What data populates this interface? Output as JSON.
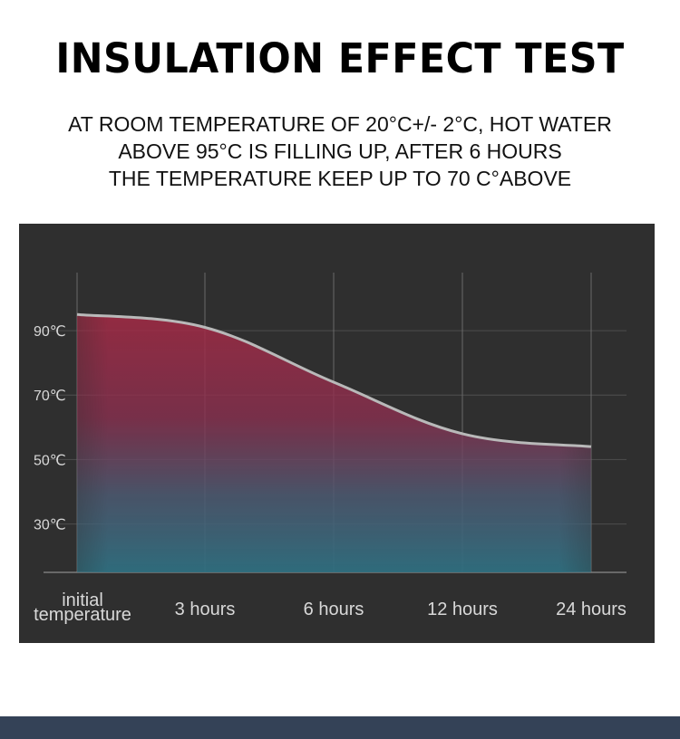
{
  "title": "INSULATION EFFECT TEST",
  "subtitle_lines": [
    "AT ROOM TEMPERATURE OF 20°C+/- 2°C, HOT WATER",
    "ABOVE 95°C IS FILLING UP, AFTER 6 HOURS",
    "THE TEMPERATURE KEEP UP TO 70 C°ABOVE"
  ],
  "chart_data": {
    "type": "area",
    "title": "",
    "xlabel": "",
    "ylabel": "",
    "categories": [
      "initial temperature",
      "3 hours",
      "6 hours",
      "12 hours",
      "24 hours"
    ],
    "y_tick_labels": [
      "90℃",
      "70℃",
      "50℃",
      "30℃"
    ],
    "y_ticks": [
      90,
      70,
      50,
      30
    ],
    "ylim": [
      15,
      108
    ],
    "series": [
      {
        "values": [
          95,
          91,
          74,
          58,
          54
        ]
      }
    ],
    "grid": true,
    "colors": {
      "background": "#2f2f2f",
      "curve": "#b9b9b9",
      "fill_hot": "#a52a45",
      "fill_cool": "#2f6f80",
      "grid": "#6a6a6a",
      "label": "#d8d8d8"
    }
  }
}
